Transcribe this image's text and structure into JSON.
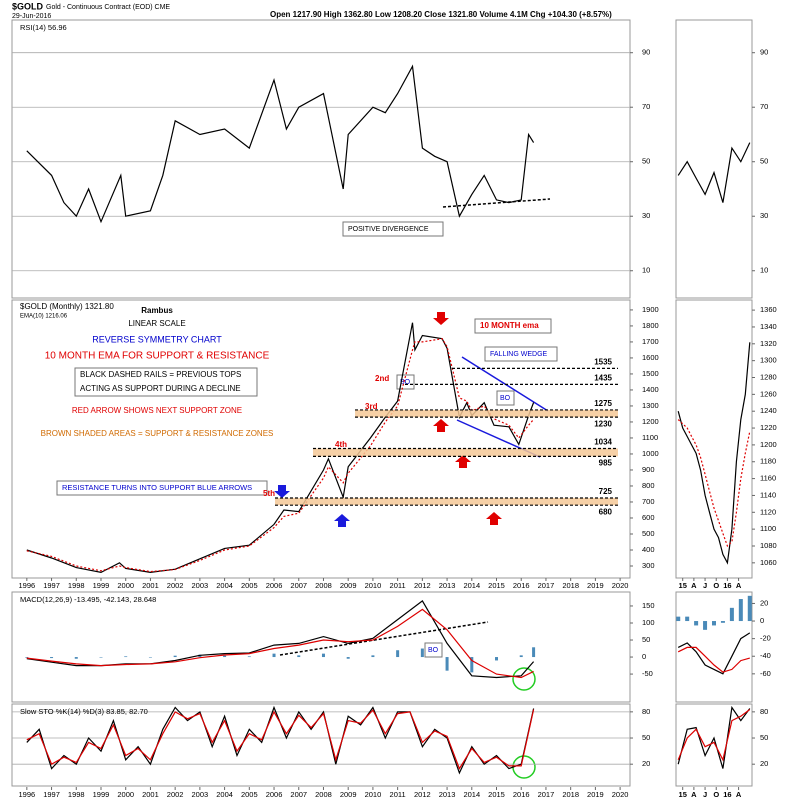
{
  "header": {
    "symbol": "$GOLD",
    "title": "Gold - Continuous Contract (EOD) CME",
    "date": "29-Jun-2016",
    "quote": "Open 1217.90 High 1362.80 Low 1208.20 Close 1321.80 Volume 4.1M Chg +104.30 (+8.57%)"
  },
  "x_axis": {
    "xlim": [
      1995.4,
      2020.4
    ],
    "xticks": [
      1996,
      1997,
      1998,
      1999,
      2000,
      2001,
      2002,
      2003,
      2004,
      2005,
      2006,
      2007,
      2008,
      2009,
      2010,
      2011,
      2012,
      2013,
      2014,
      2015,
      2016,
      2017,
      2018,
      2019,
      2020
    ],
    "inset_xlim": [
      2014.85,
      2016.55
    ],
    "inset_xticks": [
      {
        "value": 2015,
        "label": "15"
      },
      {
        "value": 2015.25,
        "label": "A"
      },
      {
        "value": 2015.5,
        "label": "J"
      },
      {
        "value": 2015.75,
        "label": "O"
      },
      {
        "value": 2016,
        "label": "16"
      },
      {
        "value": 2016.25,
        "label": "A"
      }
    ]
  },
  "chart_data": [
    {
      "type": "line",
      "title": "RSI(14) 56.96",
      "ylim": [
        0,
        102
      ],
      "yticks": [
        10,
        30,
        50,
        70,
        90
      ],
      "grid": true,
      "x": [
        1996,
        1997,
        1997.5,
        1998,
        1998.5,
        1999,
        1999.8,
        2000,
        2001,
        2001.5,
        2002,
        2003,
        2004,
        2005,
        2006,
        2006.5,
        2007,
        2008,
        2008.8,
        2009,
        2010,
        2010.5,
        2011,
        2011.6,
        2012,
        2012.5,
        2013,
        2013.5,
        2014,
        2014.5,
        2015,
        2015.5,
        2016,
        2016.3,
        2016.5
      ],
      "series": [
        {
          "color": "#000000",
          "values": [
            54,
            45,
            35,
            30,
            40,
            28,
            45,
            30,
            32,
            45,
            65,
            60,
            62,
            55,
            80,
            62,
            70,
            75,
            40,
            60,
            70,
            68,
            75,
            85,
            55,
            52,
            50,
            30,
            38,
            45,
            36,
            35,
            36,
            60,
            57
          ]
        }
      ],
      "inset": {
        "ylim": [
          0,
          102
        ],
        "yticks": [
          10,
          30,
          50,
          70,
          90
        ],
        "x": [
          2014.9,
          2015.1,
          2015.3,
          2015.5,
          2015.7,
          2015.9,
          2016.1,
          2016.3,
          2016.5
        ],
        "series": [
          {
            "color": "#000000",
            "values": [
              45,
              50,
              44,
              38,
              46,
              35,
              55,
              50,
              57
            ]
          }
        ]
      },
      "annotations": [
        "POSITIVE DIVERGENCE"
      ]
    },
    {
      "type": "line",
      "ylim": [
        225,
        1962
      ],
      "yticks": [
        300,
        400,
        500,
        600,
        700,
        800,
        900,
        1000,
        1100,
        1200,
        1300,
        1400,
        1500,
        1600,
        1700,
        1800,
        1900
      ],
      "grid": false,
      "x": [
        1996,
        1997,
        1998,
        1999,
        1999.75,
        2000,
        2001,
        2002,
        2003,
        2004,
        2005,
        2006,
        2006.4,
        2007,
        2008,
        2008.2,
        2008.8,
        2009,
        2009.9,
        2010.5,
        2011,
        2011.6,
        2011.7,
        2012,
        2012.8,
        2013,
        2013.5,
        2013.8,
        2014,
        2014.5,
        2014.9,
        2015.5,
        2015.9,
        2016.3,
        2016.5
      ],
      "series": [
        {
          "name": "$GOLD (Monthly) 1321.80",
          "color": "#000000",
          "values": [
            400,
            350,
            290,
            260,
            320,
            285,
            260,
            280,
            345,
            410,
            430,
            560,
            650,
            640,
            900,
            970,
            730,
            920,
            1100,
            1230,
            1330,
            1820,
            1650,
            1740,
            1720,
            1660,
            1230,
            1320,
            1240,
            1320,
            1180,
            1170,
            1060,
            1240,
            1321.8
          ]
        },
        {
          "name": "EMA(10) 1216.06",
          "color": "#dd0000",
          "style": "dotted",
          "values": [
            395,
            360,
            300,
            270,
            300,
            290,
            265,
            278,
            335,
            400,
            425,
            540,
            610,
            630,
            850,
            920,
            820,
            880,
            1050,
            1200,
            1300,
            1650,
            1700,
            1700,
            1720,
            1670,
            1350,
            1330,
            1270,
            1300,
            1220,
            1180,
            1100,
            1180,
            1216.06
          ]
        }
      ],
      "inset": {
        "ylim": [
          1042,
          1372
        ],
        "yticks": [
          1060,
          1080,
          1100,
          1120,
          1140,
          1160,
          1180,
          1200,
          1220,
          1240,
          1260,
          1280,
          1300,
          1320,
          1340,
          1360
        ],
        "x": [
          2014.9,
          2015.0,
          2015.1,
          2015.2,
          2015.3,
          2015.4,
          2015.5,
          2015.6,
          2015.7,
          2015.8,
          2015.9,
          2016.0,
          2016.1,
          2016.2,
          2016.3,
          2016.4,
          2016.5
        ],
        "series": [
          {
            "color": "#000000",
            "values": [
              1240,
              1220,
              1210,
              1200,
              1190,
              1170,
              1140,
              1120,
              1100,
              1090,
              1070,
              1060,
              1100,
              1180,
              1230,
              1260,
              1321.8
            ]
          },
          {
            "color": "#dd0000",
            "style": "dotted",
            "values": [
              1230,
              1225,
              1220,
              1210,
              1200,
              1185,
              1165,
              1145,
              1125,
              1110,
              1095,
              1080,
              1085,
              1120,
              1160,
              1190,
              1216.06
            ]
          }
        ]
      },
      "levels": [
        1535,
        1435,
        1275,
        1230,
        1034,
        985,
        725,
        680
      ],
      "annotations": [
        "Rambus",
        "LINEAR SCALE",
        "REVERSE SYMMETRY CHART",
        "10 MONTH EMA FOR SUPPORT & RESISTANCE",
        "BLACK DASHED RAILS = PREVIOUS TOPS",
        "ACTING AS SUPPORT DURING A DECLINE",
        "RED ARROW SHOWS NEXT SUPPORT ZONE",
        "BROWN SHADED AREAS = SUPPORT & RESISTANCE ZONES",
        "RESISTANCE TURNS INTO SUPPORT BLUE ARROWS",
        "5th",
        "4th",
        "3rd",
        "2nd",
        "BO",
        "BO",
        "10 MONTH ema",
        "FALLING WEDGE"
      ]
    },
    {
      "type": "line",
      "title": "MACD(12,26,9) -13.495, -42.143, 28.648",
      "ylim": [
        -132,
        191
      ],
      "yticks": [
        -50,
        0,
        50,
        100,
        150
      ],
      "grid": false,
      "x": [
        1996,
        1997,
        1998,
        1999,
        2000,
        2001,
        2002,
        2003,
        2004,
        2005,
        2006,
        2007,
        2008,
        2009,
        2010,
        2011,
        2012,
        2013,
        2014,
        2015,
        2016,
        2016.5
      ],
      "series": [
        {
          "color": "#4a8ab8",
          "style": "histogram",
          "values": [
            -2,
            -3,
            -5,
            0,
            2,
            0,
            4,
            7,
            4,
            2,
            10,
            5,
            10,
            -5,
            5,
            20,
            25,
            -40,
            -45,
            -10,
            5,
            28.648
          ]
        },
        {
          "color": "#000000",
          "values": [
            -5,
            -15,
            -25,
            -25,
            -20,
            -20,
            -10,
            5,
            10,
            12,
            35,
            40,
            60,
            40,
            55,
            110,
            165,
            40,
            -55,
            -60,
            -55,
            -13.495
          ]
        },
        {
          "color": "#dd0000",
          "values": [
            -3,
            -12,
            -20,
            -25,
            -22,
            -20,
            -14,
            -2,
            6,
            10,
            25,
            35,
            50,
            45,
            50,
            90,
            140,
            80,
            -10,
            -50,
            -60,
            -42.143
          ]
        }
      ],
      "inset": {
        "ylim": [
          -92,
          33
        ],
        "yticks": [
          -60,
          -40,
          -20,
          0,
          20
        ],
        "x": [
          2014.9,
          2015.1,
          2015.3,
          2015.5,
          2015.7,
          2015.9,
          2016.1,
          2016.3,
          2016.5
        ],
        "series": [
          {
            "color": "#4a8ab8",
            "style": "histogram",
            "values": [
              5,
              5,
              -5,
              -10,
              -5,
              -2,
              15,
              25,
              28.648
            ]
          },
          {
            "color": "#000000",
            "values": [
              -30,
              -25,
              -35,
              -50,
              -55,
              -60,
              -40,
              -20,
              -13.495
            ]
          },
          {
            "color": "#dd0000",
            "values": [
              -35,
              -30,
              -30,
              -40,
              -50,
              -58,
              -55,
              -45,
              -42.143
            ]
          }
        ]
      },
      "annotations": [
        "BO"
      ]
    },
    {
      "type": "line",
      "title": "Slow STO %K(14) %D(3) 83.85, 82.70",
      "ylim": [
        -5,
        89
      ],
      "yticks": [
        20,
        50,
        80
      ],
      "grid": true,
      "x": [
        1996,
        1996.5,
        1997,
        1997.5,
        1998,
        1998.5,
        1999,
        1999.5,
        2000,
        2000.5,
        2001,
        2001.5,
        2002,
        2002.5,
        2003,
        2003.5,
        2004,
        2004.5,
        2005,
        2005.5,
        2006,
        2006.5,
        2007,
        2007.5,
        2008,
        2008.5,
        2009,
        2009.5,
        2010,
        2010.5,
        2011,
        2011.5,
        2012,
        2012.5,
        2013,
        2013.5,
        2014,
        2014.5,
        2015,
        2015.5,
        2016,
        2016.5
      ],
      "series": [
        {
          "color": "#000000",
          "values": [
            45,
            60,
            15,
            30,
            20,
            50,
            35,
            70,
            25,
            40,
            20,
            60,
            85,
            70,
            80,
            40,
            75,
            30,
            60,
            45,
            85,
            50,
            80,
            60,
            80,
            20,
            75,
            65,
            85,
            50,
            80,
            80,
            40,
            60,
            50,
            10,
            40,
            20,
            30,
            15,
            20,
            83.85
          ]
        },
        {
          "color": "#dd0000",
          "values": [
            48,
            55,
            20,
            28,
            22,
            45,
            38,
            65,
            30,
            38,
            25,
            55,
            80,
            72,
            78,
            45,
            70,
            35,
            55,
            48,
            80,
            55,
            76,
            62,
            78,
            25,
            70,
            67,
            82,
            55,
            78,
            80,
            45,
            58,
            52,
            15,
            38,
            22,
            28,
            18,
            18,
            82.7
          ]
        }
      ],
      "inset": {
        "ylim": [
          -5,
          89
        ],
        "yticks": [
          20,
          50,
          80
        ],
        "x": [
          2014.9,
          2015.1,
          2015.3,
          2015.5,
          2015.7,
          2015.9,
          2016.1,
          2016.3,
          2016.5
        ],
        "series": [
          {
            "color": "#000000",
            "values": [
              20,
              60,
              62,
              30,
              50,
              15,
              85,
              70,
              83.85
            ]
          },
          {
            "color": "#dd0000",
            "values": [
              25,
              50,
              60,
              40,
              45,
              25,
              70,
              75,
              82.7
            ]
          }
        ]
      }
    }
  ]
}
